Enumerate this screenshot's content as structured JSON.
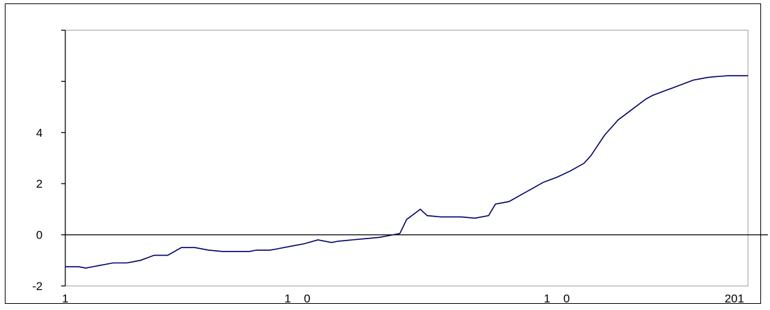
{
  "chart_data": {
    "type": "line",
    "title": "",
    "xlabel": "",
    "ylabel": "",
    "xlim": [
      0,
      100
    ],
    "ylim": [
      -2,
      8
    ],
    "y_ticks": [
      {
        "value": -2,
        "label": "-2"
      },
      {
        "value": 0,
        "label": "0"
      },
      {
        "value": 2,
        "label": "2"
      },
      {
        "value": 4,
        "label": "4"
      },
      {
        "value": 6,
        "label": ""
      },
      {
        "value": 8,
        "label": ""
      }
    ],
    "x_tick_labels": [
      {
        "value": 0,
        "label": "1"
      },
      {
        "value": 34,
        "label": "1    0"
      },
      {
        "value": 72,
        "label": "1    0"
      },
      {
        "value": 98,
        "label": "201"
      }
    ],
    "zero_line": true,
    "grid": false,
    "legend": "none",
    "line_color": "#000066",
    "series": [
      {
        "x": [
          0,
          2,
          3,
          4,
          5,
          6,
          7,
          8,
          9,
          10,
          11,
          12,
          13,
          15,
          17,
          19,
          21,
          23,
          25,
          27,
          28,
          30,
          31,
          33,
          35,
          37,
          39,
          40,
          42,
          44,
          46,
          47,
          48,
          49,
          50,
          52,
          53,
          55,
          57,
          58,
          60,
          62,
          63,
          65,
          67,
          69,
          70,
          71,
          72,
          74,
          76,
          77,
          78,
          79,
          80,
          81,
          82,
          83,
          84,
          85,
          86,
          87,
          88,
          89,
          90,
          91,
          92,
          93,
          94,
          95,
          96,
          97,
          98,
          99,
          100
        ],
        "y": [
          -1.25,
          -1.25,
          -1.3,
          -1.25,
          -1.2,
          -1.15,
          -1.1,
          -1.1,
          -1.1,
          -1.05,
          -1.0,
          -0.9,
          -0.8,
          -0.8,
          -0.5,
          -0.5,
          -0.6,
          -0.65,
          -0.65,
          -0.65,
          -0.6,
          -0.6,
          -0.55,
          -0.45,
          -0.35,
          -0.2,
          -0.3,
          -0.25,
          -0.2,
          -0.15,
          -0.1,
          -0.05,
          0.0,
          0.05,
          0.6,
          1.0,
          0.75,
          0.7,
          0.7,
          0.7,
          0.65,
          0.75,
          1.2,
          1.3,
          1.6,
          1.9,
          2.05,
          2.15,
          2.25,
          2.5,
          2.8,
          3.1,
          3.5,
          3.9,
          4.2,
          4.5,
          4.7,
          4.9,
          5.1,
          5.3,
          5.45,
          5.55,
          5.65,
          5.75,
          5.85,
          5.95,
          6.05,
          6.1,
          6.15,
          6.18,
          6.2,
          6.22,
          6.22,
          6.22,
          6.22
        ]
      }
    ]
  }
}
